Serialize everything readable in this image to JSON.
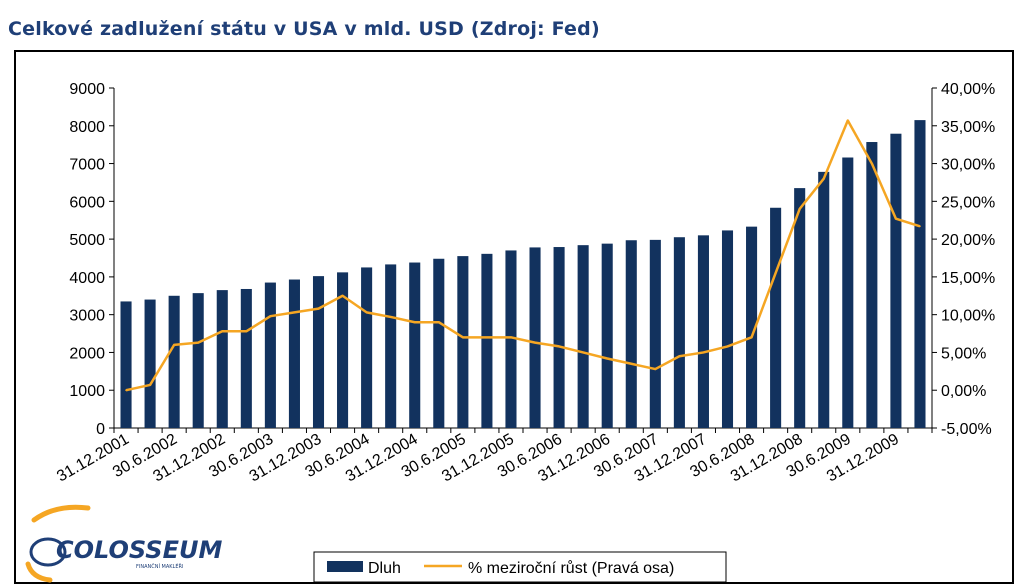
{
  "title": "Celkové zadlužení státu v USA v mld. USD (Zdroj: Fed)",
  "logo": {
    "name": "COLOSSEUM",
    "subtitle": "FINANČNÍ MAKLÉŘI"
  },
  "colors": {
    "bar": "#12325e",
    "line": "#f5a623",
    "title": "#1f3f77"
  },
  "chart_data": {
    "type": "bar",
    "title": "Celkové zadlužení státu v USA v mld. USD (Zdroj: Fed)",
    "grid": false,
    "legend_position": "bottom",
    "y_left": {
      "min": 0,
      "max": 9000,
      "step": 1000,
      "ticks": [
        "0",
        "1000",
        "2000",
        "3000",
        "4000",
        "5000",
        "6000",
        "7000",
        "8000",
        "9000"
      ]
    },
    "y_right": {
      "min": -5,
      "max": 40,
      "step": 5,
      "ticks": [
        "-5,00%",
        "0,00%",
        "5,00%",
        "10,00%",
        "15,00%",
        "20,00%",
        "25,00%",
        "30,00%",
        "35,00%",
        "40,00%"
      ]
    },
    "x_tick_labels": [
      "31.12.2001",
      "30.6.2002",
      "31.12.2002",
      "30.6.2003",
      "31.12.2003",
      "30.6.2004",
      "31.12.2004",
      "30.6.2005",
      "31.12.2005",
      "30.6.2006",
      "31.12.2006",
      "30.6.2007",
      "31.12.2007",
      "30.6.2008",
      "31.12.2008",
      "30.6.2009",
      "31.12.2009"
    ],
    "series": [
      {
        "name": "Dluh",
        "type": "bar",
        "axis": "left",
        "values": [
          3350,
          3400,
          3500,
          3570,
          3650,
          3680,
          3850,
          3930,
          4020,
          4120,
          4250,
          4330,
          4380,
          4480,
          4550,
          4610,
          4700,
          4780,
          4790,
          4840,
          4880,
          4970,
          4980,
          5050,
          5100,
          5230,
          5330,
          5830,
          6350,
          6780,
          7160,
          7570,
          7790,
          8150
        ]
      },
      {
        "name": "% meziroční růst (Pravá osa)",
        "type": "line",
        "axis": "right",
        "values": [
          0.0,
          0.7,
          6.0,
          6.3,
          7.8,
          7.8,
          9.8,
          10.3,
          10.8,
          12.5,
          10.3,
          9.7,
          9.0,
          9.0,
          7.0,
          7.0,
          7.0,
          6.3,
          5.8,
          5.0,
          4.2,
          3.5,
          2.8,
          4.5,
          5.0,
          5.8,
          7.0,
          15.5,
          24.0,
          28.0,
          35.7,
          30.0,
          22.7,
          21.7
        ]
      }
    ]
  }
}
